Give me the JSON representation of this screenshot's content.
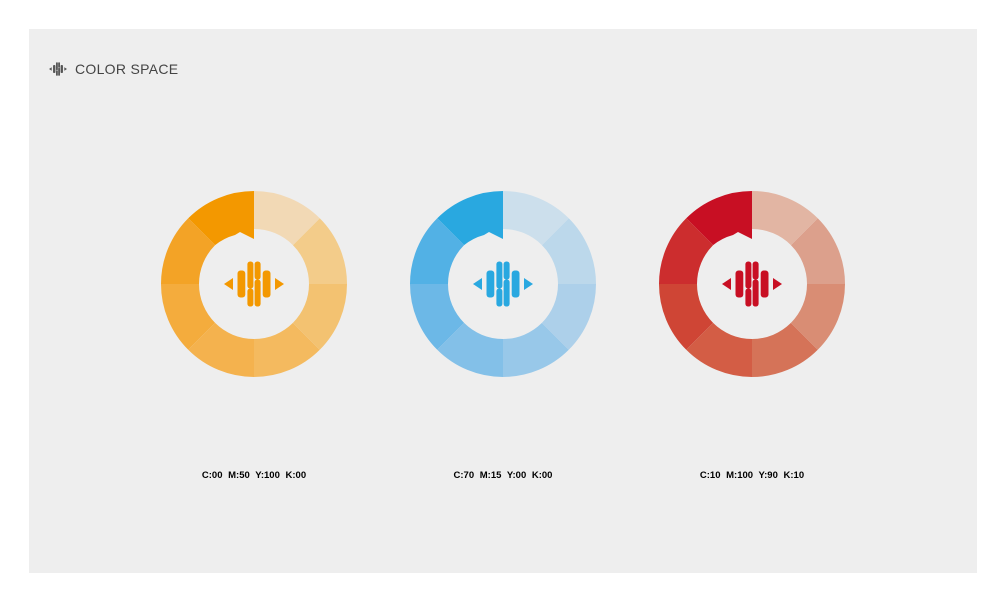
{
  "header": {
    "title": "COLOR SPACE",
    "logo_icon": "color-space-logo-icon"
  },
  "swatches": [
    {
      "name": "orange",
      "color": "#F39800",
      "cmyk": "C:00  M:50  Y:100  K:00"
    },
    {
      "name": "blue",
      "color": "#29A8E0",
      "cmyk": "C:70  M:15  Y:00  K:00"
    },
    {
      "name": "red",
      "color": "#C80F23",
      "cmyk": "C:10  M:100  Y:90  K:10"
    }
  ]
}
